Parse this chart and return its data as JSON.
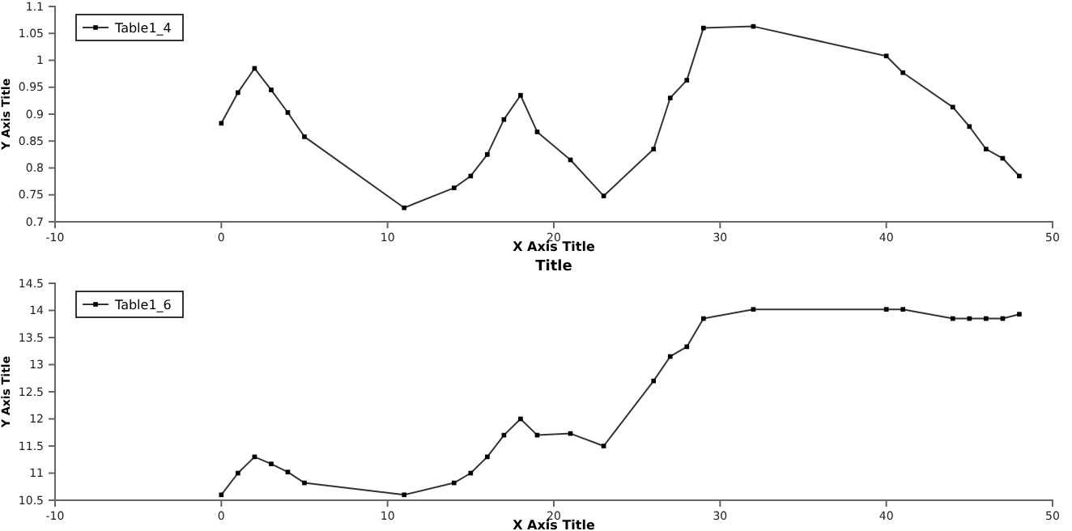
{
  "chart_data": [
    {
      "type": "line",
      "xlabel": "X Axis Title",
      "ylabel": "Y Axis Title",
      "x": [
        0,
        1,
        2,
        3,
        4,
        5,
        11,
        14,
        15,
        16,
        17,
        18,
        19,
        21,
        23,
        26,
        27,
        28,
        29,
        32,
        40,
        41,
        44,
        45,
        46,
        47,
        48
      ],
      "series": [
        {
          "name": "Table1_4",
          "color": "#333333",
          "values": [
            0.883,
            0.94,
            0.985,
            0.945,
            0.903,
            0.858,
            0.726,
            0.763,
            0.785,
            0.825,
            0.89,
            0.935,
            0.867,
            0.815,
            0.748,
            0.835,
            0.93,
            0.963,
            1.06,
            1.063,
            1.008,
            0.977,
            0.913,
            0.877,
            0.835,
            0.818,
            0.785
          ]
        }
      ],
      "xlim": [
        -10,
        50
      ],
      "xticks": [
        -10,
        0,
        10,
        20,
        30,
        40,
        50
      ],
      "ylim": [
        0.7,
        1.1
      ],
      "yticks": [
        0.7,
        0.75,
        0.8,
        0.85,
        0.9,
        0.95,
        1,
        1.05,
        1.1
      ],
      "legend": "top left",
      "marker": "square",
      "line_style": "solid",
      "grid": false
    },
    {
      "type": "line",
      "title": "Title",
      "xlabel": "X Axis Title",
      "ylabel": "Y Axis Title",
      "x": [
        0,
        1,
        2,
        3,
        4,
        5,
        11,
        14,
        15,
        16,
        17,
        18,
        19,
        21,
        23,
        26,
        27,
        28,
        29,
        32,
        40,
        41,
        44,
        45,
        46,
        47,
        48
      ],
      "series": [
        {
          "name": "Table1_6",
          "color": "#333333",
          "values": [
            10.6,
            11.0,
            11.3,
            11.17,
            11.02,
            10.82,
            10.6,
            10.82,
            11.0,
            11.3,
            11.7,
            12.0,
            11.7,
            11.73,
            11.5,
            12.7,
            13.15,
            13.33,
            13.85,
            14.02,
            14.02,
            14.02,
            13.85,
            13.85,
            13.85,
            13.85,
            13.93
          ]
        }
      ],
      "xlim": [
        -10,
        50
      ],
      "xticks": [
        -10,
        0,
        10,
        20,
        30,
        40,
        50
      ],
      "ylim": [
        10.5,
        14.5
      ],
      "yticks": [
        10.5,
        11,
        11.5,
        12,
        12.5,
        13,
        13.5,
        14,
        14.5
      ],
      "legend": "top left",
      "marker": "square",
      "line_style": "solid",
      "grid": false
    }
  ]
}
